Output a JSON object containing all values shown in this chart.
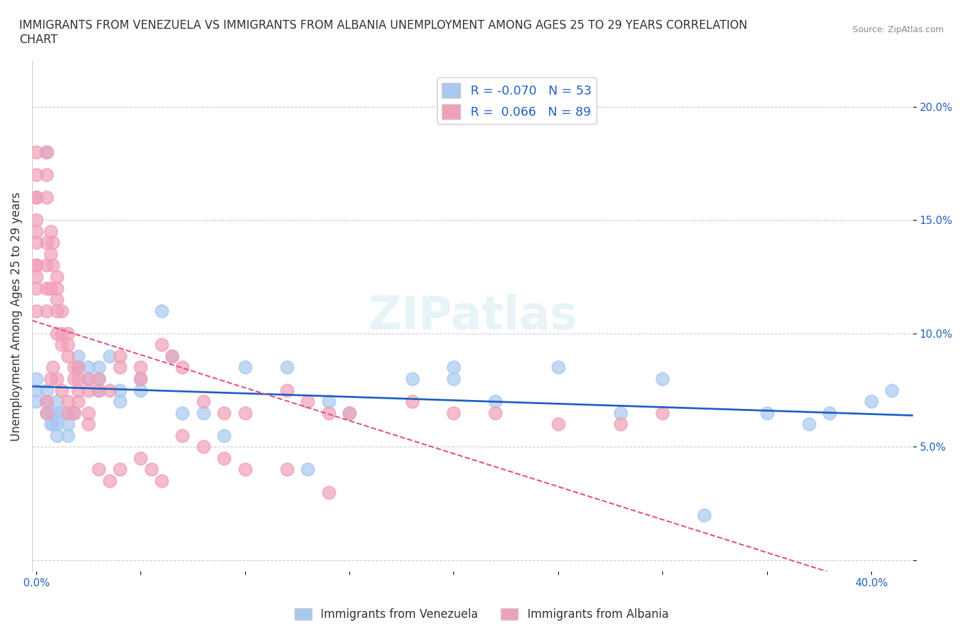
{
  "title": "IMMIGRANTS FROM VENEZUELA VS IMMIGRANTS FROM ALBANIA UNEMPLOYMENT AMONG AGES 25 TO 29 YEARS CORRELATION\nCHART",
  "source": "Source: ZipAtlas.com",
  "xlabel": "",
  "ylabel": "Unemployment Among Ages 25 to 29 years",
  "xlim": [
    -0.002,
    0.42
  ],
  "ylim": [
    -0.005,
    0.22
  ],
  "xticks": [
    0.0,
    0.05,
    0.1,
    0.15,
    0.2,
    0.25,
    0.3,
    0.35,
    0.4
  ],
  "xticklabels": [
    "0.0%",
    "",
    "",
    "",
    "",
    "",
    "",
    "",
    "40.0%"
  ],
  "yticks": [
    0.0,
    0.05,
    0.1,
    0.15,
    0.2
  ],
  "yticklabels": [
    "",
    "5.0%",
    "10.0%",
    "15.0%",
    "20.0%"
  ],
  "grid_color": "#cccccc",
  "background_color": "#ffffff",
  "watermark": "ZIPatlas",
  "legend_R_venezuela": "-0.070",
  "legend_N_venezuela": "53",
  "legend_R_albania": "0.066",
  "legend_N_albania": "89",
  "venezuela_color": "#a8c8f0",
  "albania_color": "#f0a0b8",
  "venezuela_line_color": "#2060c0",
  "albania_line_color": "#e05080",
  "venezuela_x": [
    0.0,
    0.0,
    0.0,
    0.005,
    0.005,
    0.005,
    0.007,
    0.007,
    0.008,
    0.01,
    0.01,
    0.01,
    0.01,
    0.012,
    0.015,
    0.015,
    0.018,
    0.02,
    0.02,
    0.025,
    0.025,
    0.03,
    0.03,
    0.03,
    0.035,
    0.04,
    0.04,
    0.05,
    0.05,
    0.06,
    0.065,
    0.07,
    0.08,
    0.09,
    0.1,
    0.12,
    0.13,
    0.14,
    0.15,
    0.18,
    0.2,
    0.2,
    0.22,
    0.25,
    0.28,
    0.3,
    0.32,
    0.35,
    0.37,
    0.38,
    0.4,
    0.41,
    0.005
  ],
  "venezuela_y": [
    0.08,
    0.07,
    0.075,
    0.075,
    0.07,
    0.065,
    0.065,
    0.06,
    0.06,
    0.07,
    0.065,
    0.06,
    0.055,
    0.065,
    0.06,
    0.055,
    0.065,
    0.09,
    0.085,
    0.085,
    0.08,
    0.085,
    0.08,
    0.075,
    0.09,
    0.075,
    0.07,
    0.08,
    0.075,
    0.11,
    0.09,
    0.065,
    0.065,
    0.055,
    0.085,
    0.085,
    0.04,
    0.07,
    0.065,
    0.08,
    0.085,
    0.08,
    0.07,
    0.085,
    0.065,
    0.08,
    0.02,
    0.065,
    0.06,
    0.065,
    0.07,
    0.075,
    0.18
  ],
  "albania_x": [
    0.0,
    0.0,
    0.0,
    0.0,
    0.0,
    0.0,
    0.0,
    0.0,
    0.0,
    0.0,
    0.0,
    0.0,
    0.005,
    0.005,
    0.005,
    0.005,
    0.005,
    0.005,
    0.005,
    0.007,
    0.007,
    0.007,
    0.008,
    0.008,
    0.01,
    0.01,
    0.01,
    0.01,
    0.01,
    0.012,
    0.012,
    0.012,
    0.015,
    0.015,
    0.015,
    0.018,
    0.018,
    0.02,
    0.02,
    0.02,
    0.025,
    0.025,
    0.03,
    0.03,
    0.035,
    0.04,
    0.04,
    0.05,
    0.05,
    0.06,
    0.065,
    0.07,
    0.08,
    0.09,
    0.1,
    0.12,
    0.13,
    0.14,
    0.15,
    0.18,
    0.2,
    0.22,
    0.25,
    0.28,
    0.3,
    0.005,
    0.005,
    0.007,
    0.008,
    0.01,
    0.012,
    0.015,
    0.015,
    0.018,
    0.02,
    0.025,
    0.025,
    0.03,
    0.035,
    0.04,
    0.05,
    0.055,
    0.06,
    0.07,
    0.08,
    0.09,
    0.1,
    0.12,
    0.14
  ],
  "albania_y": [
    0.18,
    0.17,
    0.16,
    0.16,
    0.15,
    0.145,
    0.14,
    0.13,
    0.13,
    0.125,
    0.12,
    0.11,
    0.18,
    0.17,
    0.16,
    0.14,
    0.13,
    0.12,
    0.11,
    0.145,
    0.135,
    0.12,
    0.14,
    0.13,
    0.125,
    0.12,
    0.115,
    0.11,
    0.1,
    0.11,
    0.1,
    0.095,
    0.1,
    0.095,
    0.09,
    0.085,
    0.08,
    0.085,
    0.08,
    0.075,
    0.08,
    0.075,
    0.08,
    0.075,
    0.075,
    0.09,
    0.085,
    0.085,
    0.08,
    0.095,
    0.09,
    0.085,
    0.07,
    0.065,
    0.065,
    0.075,
    0.07,
    0.065,
    0.065,
    0.07,
    0.065,
    0.065,
    0.06,
    0.06,
    0.065,
    0.065,
    0.07,
    0.08,
    0.085,
    0.08,
    0.075,
    0.065,
    0.07,
    0.065,
    0.07,
    0.065,
    0.06,
    0.04,
    0.035,
    0.04,
    0.045,
    0.04,
    0.035,
    0.055,
    0.05,
    0.045,
    0.04,
    0.04,
    0.03
  ]
}
